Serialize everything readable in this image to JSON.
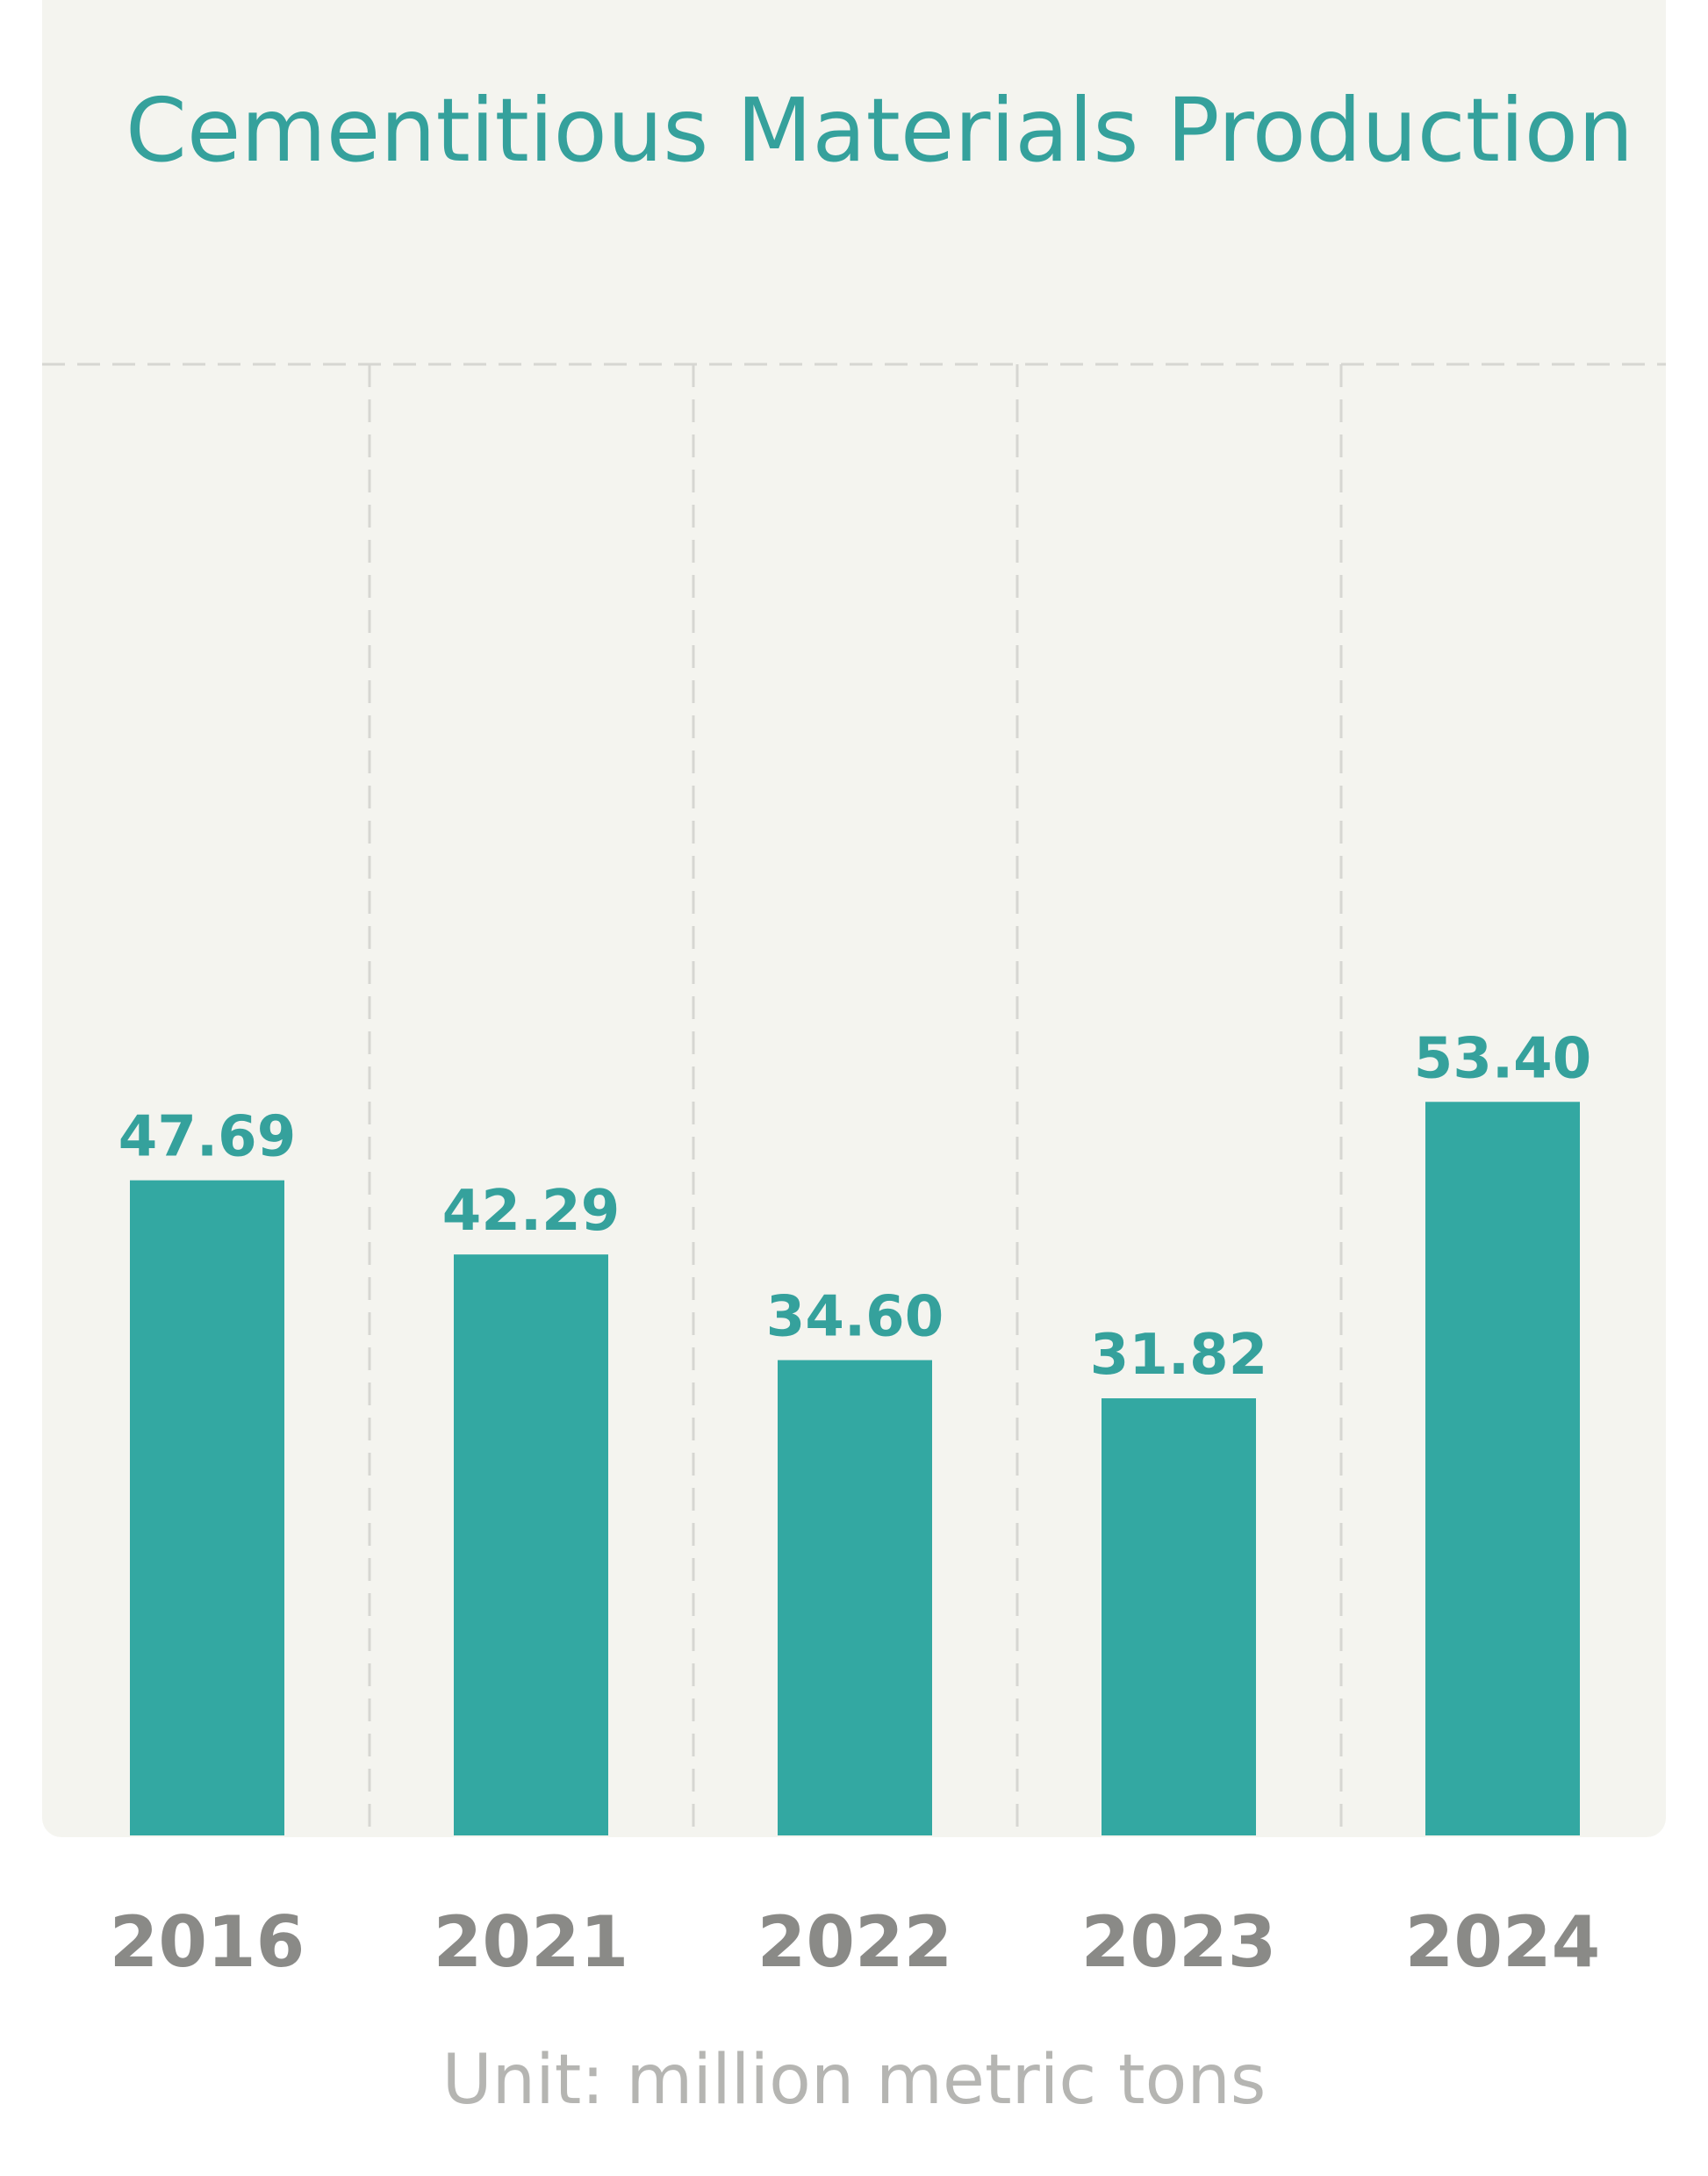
{
  "chart_data": {
    "type": "bar",
    "title": "Cementitious Materials Production",
    "unit_note": "Unit: million metric tons",
    "categories": [
      "2016",
      "2021",
      "2022",
      "2023",
      "2024"
    ],
    "values": [
      47.69,
      42.29,
      34.6,
      31.82,
      53.4
    ],
    "value_labels": [
      "47.69",
      "42.29",
      "34.60",
      "31.82",
      "53.40"
    ],
    "ylim": [
      0,
      60
    ],
    "grid": "dashed vertical separators and top dashed line",
    "colors": {
      "bar": "#33a8a2",
      "title": "#35a19c",
      "background": "#f4f4ef",
      "tick": "#8a8a87",
      "unit": "#b5b5b2"
    }
  }
}
